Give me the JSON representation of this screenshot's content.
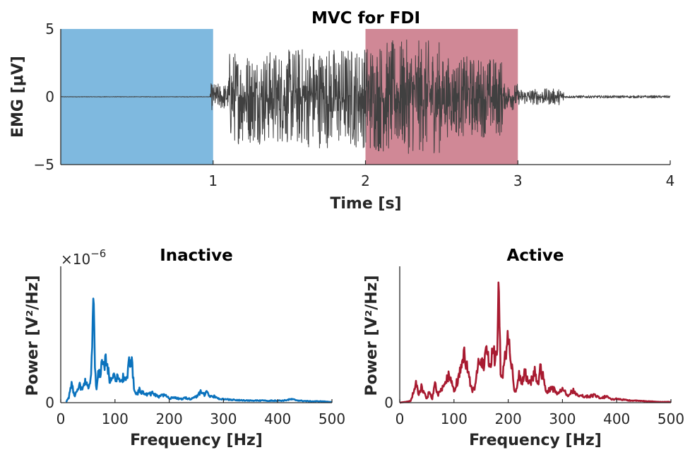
{
  "chart_data": [
    {
      "type": "line",
      "title": "MVC for FDI",
      "xlabel": "Time [s]",
      "ylabel": "EMG [μV]",
      "xlim": [
        0,
        4
      ],
      "ylim": [
        -5,
        5
      ],
      "xticks": [
        "1",
        "2",
        "3",
        "4"
      ],
      "yticks": [
        "5",
        "0",
        "−5"
      ],
      "grid": false,
      "shaded_regions": [
        {
          "x": [
            0,
            1
          ],
          "color": "#7fb9df"
        },
        {
          "x": [
            2,
            3
          ],
          "color": "#d08896"
        }
      ],
      "series": [
        {
          "color": "#404040",
          "segments": [
            {
              "x": [
                0,
                0.98
              ],
              "amplitude": 0.02
            },
            {
              "x": [
                0.98,
                1.1
              ],
              "amplitude": 1.0
            },
            {
              "x": [
                1.1,
                1.5
              ],
              "amplitude": 3.5
            },
            {
              "x": [
                1.5,
                2.0
              ],
              "amplitude": 3.8
            },
            {
              "x": [
                2.0,
                2.5
              ],
              "amplitude": 4.2
            },
            {
              "x": [
                2.5,
                2.9
              ],
              "amplitude": 3.0
            },
            {
              "x": [
                2.9,
                3.0
              ],
              "amplitude": 1.0
            },
            {
              "x": [
                3.0,
                3.3
              ],
              "amplitude": 0.6
            },
            {
              "x": [
                3.3,
                4.0
              ],
              "amplitude": 0.1
            }
          ]
        }
      ]
    },
    {
      "type": "line",
      "title": "Inactive",
      "xlabel": "Frequency [Hz]",
      "ylabel": "Power [V²/Hz]",
      "scale_label": "×10",
      "scale_exponent": "−6",
      "xlim": [
        0,
        500
      ],
      "xticks": [
        "0",
        "100",
        "200",
        "300",
        "400",
        "500"
      ],
      "yticks": [
        "0"
      ],
      "series": [
        {
          "color": "#0a72bd",
          "x": [
            10,
            15,
            20,
            25,
            30,
            35,
            40,
            45,
            50,
            55,
            58,
            60,
            63,
            66,
            70,
            75,
            80,
            85,
            90,
            95,
            100,
            105,
            110,
            115,
            120,
            125,
            128,
            132,
            135,
            140,
            145,
            150,
            160,
            170,
            180,
            190,
            200,
            210,
            220,
            230,
            240,
            250,
            255,
            260,
            265,
            270,
            275,
            280,
            290,
            300,
            320,
            350,
            380,
            410,
            425,
            440,
            460,
            480,
            500
          ],
          "values": [
            0.01,
            0.08,
            0.28,
            0.1,
            0.15,
            0.25,
            0.18,
            0.3,
            0.22,
            0.35,
            0.7,
            1.7,
            0.5,
            0.2,
            0.45,
            0.5,
            0.6,
            0.58,
            0.35,
            0.45,
            0.38,
            0.34,
            0.28,
            0.4,
            0.3,
            0.52,
            0.6,
            0.55,
            0.18,
            0.12,
            0.2,
            0.15,
            0.12,
            0.14,
            0.08,
            0.12,
            0.06,
            0.08,
            0.05,
            0.07,
            0.05,
            0.09,
            0.14,
            0.16,
            0.12,
            0.17,
            0.08,
            0.1,
            0.06,
            0.05,
            0.04,
            0.03,
            0.03,
            0.03,
            0.05,
            0.03,
            0.02,
            0.02,
            0.01
          ]
        }
      ]
    },
    {
      "type": "line",
      "title": "Active",
      "xlabel": "Frequency [Hz]",
      "ylabel": "Power [V²/Hz]",
      "xlim": [
        0,
        500
      ],
      "xticks": [
        "0",
        "100",
        "200",
        "300",
        "400",
        "500"
      ],
      "yticks": [
        "0"
      ],
      "series": [
        {
          "color": "#a81a30",
          "x": [
            0,
            20,
            30,
            35,
            40,
            50,
            55,
            60,
            65,
            70,
            80,
            90,
            100,
            110,
            118,
            122,
            128,
            135,
            140,
            148,
            152,
            158,
            162,
            168,
            172,
            176,
            180,
            183,
            186,
            190,
            195,
            200,
            205,
            210,
            215,
            220,
            225,
            230,
            240,
            250,
            255,
            260,
            265,
            270,
            280,
            290,
            300,
            310,
            320,
            330,
            340,
            350,
            360,
            370,
            380,
            390,
            400,
            420,
            450,
            480,
            500
          ],
          "values": [
            0,
            0.02,
            0.25,
            0.1,
            0.2,
            0.05,
            0.15,
            0.05,
            0.25,
            0.1,
            0.2,
            0.35,
            0.15,
            0.35,
            0.6,
            0.55,
            0.3,
            0.15,
            0.25,
            0.6,
            0.5,
            0.55,
            0.7,
            0.4,
            0.85,
            0.5,
            0.8,
            1.5,
            0.4,
            0.35,
            0.6,
            0.9,
            0.6,
            0.2,
            0.15,
            0.35,
            0.25,
            0.4,
            0.25,
            0.4,
            0.25,
            0.45,
            0.3,
            0.12,
            0.2,
            0.12,
            0.18,
            0.1,
            0.15,
            0.1,
            0.08,
            0.08,
            0.1,
            0.05,
            0.08,
            0.04,
            0.05,
            0.03,
            0.02,
            0.01,
            0.01
          ]
        }
      ]
    }
  ]
}
